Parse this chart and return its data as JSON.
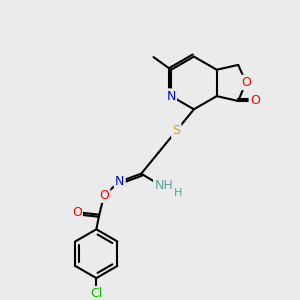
{
  "background_color": "#ebebeb",
  "bond_color": "#000000",
  "atom_colors": {
    "N": "#0000ff",
    "O": "#ff0000",
    "S": "#ccaa00",
    "Cl": "#00bb00",
    "C": "#000000",
    "H": "#5f9ea0"
  },
  "font_size": 9,
  "lw": 1.5
}
